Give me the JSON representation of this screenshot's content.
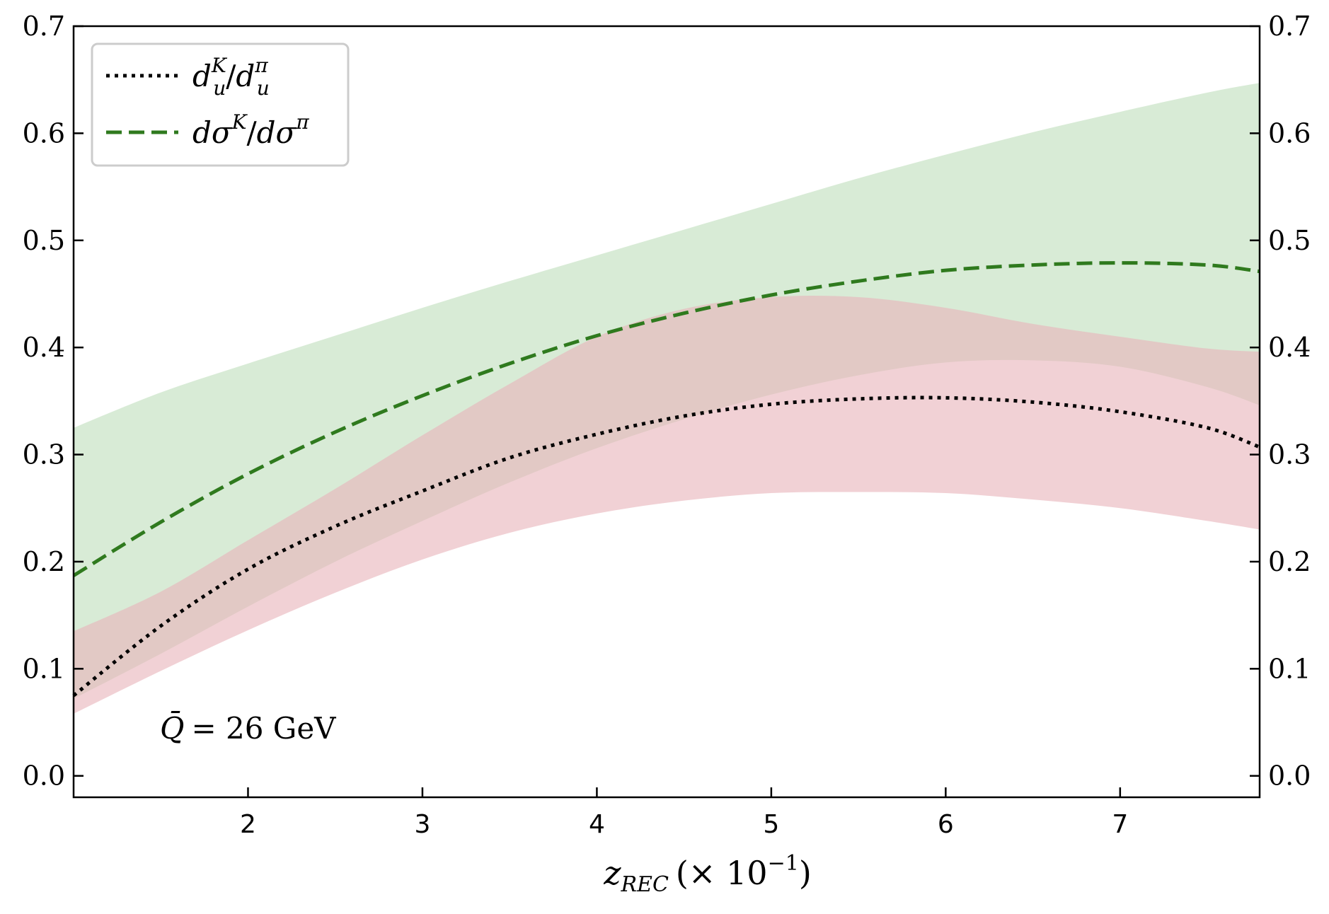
{
  "chart_data": {
    "type": "line",
    "title": "",
    "xlabel": {
      "var": "z",
      "sub": "REC",
      "factor_open": "(× 10",
      "factor_exp": "−1",
      "factor_close": ")"
    },
    "ylabel": "",
    "xlim": [
      1.0,
      7.8
    ],
    "ylim": [
      -0.02,
      0.7
    ],
    "xticks": [
      2,
      3,
      4,
      5,
      6,
      7
    ],
    "xtick_labels": [
      "2",
      "3",
      "4",
      "5",
      "6",
      "7"
    ],
    "yticks": [
      0.0,
      0.1,
      0.2,
      0.3,
      0.4,
      0.5,
      0.6,
      0.7
    ],
    "ytick_labels": [
      "0.0",
      "0.1",
      "0.2",
      "0.3",
      "0.4",
      "0.5",
      "0.6",
      "0.7"
    ],
    "right_axis_labels": true,
    "grid": false,
    "legend_position": "top-left",
    "x": [
      1.0,
      1.5,
      2.0,
      2.5,
      3.0,
      3.5,
      4.0,
      4.5,
      5.0,
      5.5,
      6.0,
      6.5,
      7.0,
      7.5,
      7.8
    ],
    "series": [
      {
        "name": "d_u^K / d_u^π",
        "legend": {
          "base": "d",
          "sub": "u",
          "sup": "K",
          "slash": "/",
          "base2": "d",
          "sub2": "u",
          "sup2": "π"
        },
        "style": "dotted",
        "color": "#000000",
        "band_color": "#e8b4bc",
        "band_opacity": 0.62,
        "values": [
          0.075,
          0.14,
          0.193,
          0.233,
          0.266,
          0.297,
          0.319,
          0.336,
          0.347,
          0.352,
          0.353,
          0.349,
          0.34,
          0.325,
          0.307
        ],
        "lower": [
          0.058,
          0.098,
          0.136,
          0.171,
          0.202,
          0.227,
          0.245,
          0.257,
          0.264,
          0.265,
          0.264,
          0.258,
          0.25,
          0.238,
          0.23
        ],
        "upper": [
          0.135,
          0.172,
          0.22,
          0.268,
          0.318,
          0.366,
          0.41,
          0.436,
          0.447,
          0.447,
          0.437,
          0.422,
          0.41,
          0.399,
          0.396
        ]
      },
      {
        "name": "dσ^K / dσ^π",
        "legend": {
          "base": "dσ",
          "sup": "K",
          "slash": "/",
          "base2": "dσ",
          "sup2": "π"
        },
        "style": "dashed",
        "color": "#2f7a1e",
        "band_color": "#b5d9b0",
        "band_opacity": 0.52,
        "values": [
          0.187,
          0.237,
          0.282,
          0.321,
          0.355,
          0.385,
          0.411,
          0.432,
          0.449,
          0.462,
          0.472,
          0.477,
          0.479,
          0.477,
          0.471
        ],
        "lower": [
          0.072,
          0.114,
          0.158,
          0.2,
          0.238,
          0.274,
          0.306,
          0.333,
          0.356,
          0.374,
          0.386,
          0.388,
          0.382,
          0.363,
          0.346
        ],
        "upper": [
          0.325,
          0.358,
          0.385,
          0.411,
          0.437,
          0.462,
          0.486,
          0.51,
          0.534,
          0.558,
          0.58,
          0.601,
          0.62,
          0.638,
          0.647
        ]
      }
    ],
    "annotations": [
      {
        "text_var": "Q̄",
        "text_rest": "= 26 GeV",
        "anchor": "bottom-left"
      }
    ]
  }
}
